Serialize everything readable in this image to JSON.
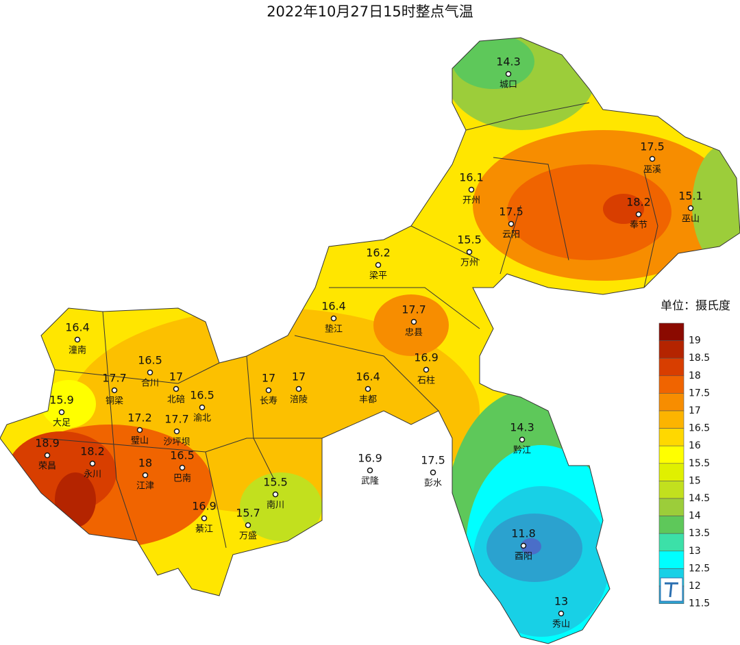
{
  "title": "2022年10月27日15时整点气温",
  "legend": {
    "title": "单位：摄氏度",
    "labels": [
      19,
      18.5,
      18,
      17.5,
      17,
      16.5,
      16,
      15.5,
      15,
      14.5,
      14,
      13.5,
      13,
      12.5,
      12,
      11.5
    ],
    "colors": [
      "#8b0a00",
      "#b42400",
      "#d83e00",
      "#f06400",
      "#f78d00",
      "#fcb400",
      "#ffd800",
      "#ffff00",
      "#e0f000",
      "#c2e01e",
      "#9ccd3a",
      "#5ec85a",
      "#3ce0a8",
      "#00ffff",
      "#18d0e6",
      "#2ba2cf"
    ]
  },
  "stations": [
    {
      "name": "城口",
      "value": 14.3
    },
    {
      "name": "巫溪",
      "value": 17.5
    },
    {
      "name": "开州",
      "value": 16.1
    },
    {
      "name": "巫山",
      "value": 15.1
    },
    {
      "name": "奉节",
      "value": 18.2
    },
    {
      "name": "云阳",
      "value": 17.5
    },
    {
      "name": "万州",
      "value": 15.5
    },
    {
      "name": "梁平",
      "value": 16.2
    },
    {
      "name": "垫江",
      "value": 16.4
    },
    {
      "name": "忠县",
      "value": 17.7
    },
    {
      "name": "潼南",
      "value": 16.4
    },
    {
      "name": "石柱",
      "value": 16.9
    },
    {
      "name": "合川",
      "value": 16.5
    },
    {
      "name": "北碚",
      "value": 17
    },
    {
      "name": "长寿",
      "value": 17
    },
    {
      "name": "涪陵",
      "value": 17
    },
    {
      "name": "丰都",
      "value": 16.4
    },
    {
      "name": "铜梁",
      "value": 17.7
    },
    {
      "name": "大足",
      "value": 15.9
    },
    {
      "name": "渝北",
      "value": 16.5
    },
    {
      "name": "璧山",
      "value": 17.2
    },
    {
      "name": "沙坪坝",
      "value": 17.7
    },
    {
      "name": "黔江",
      "value": 14.3
    },
    {
      "name": "荣昌",
      "value": 18.9
    },
    {
      "name": "永川",
      "value": 18.2
    },
    {
      "name": "江津",
      "value": 18
    },
    {
      "name": "巴南",
      "value": 16.5
    },
    {
      "name": "武隆",
      "value": 16.9
    },
    {
      "name": "彭水",
      "value": 17.5
    },
    {
      "name": "南川",
      "value": 15.5
    },
    {
      "name": "綦江",
      "value": 16.9
    },
    {
      "name": "万盛",
      "value": 15.7
    },
    {
      "name": "酉阳",
      "value": 11.8
    },
    {
      "name": "秀山",
      "value": 13
    }
  ]
}
